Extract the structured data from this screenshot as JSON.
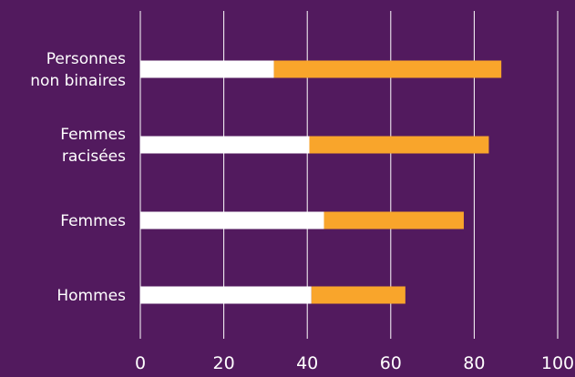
{
  "chart_data": {
    "type": "bar",
    "orientation": "horizontal",
    "stacked": true,
    "categories": [
      [
        "Personnes",
        "non binaires"
      ],
      [
        "Femmes",
        "racisées"
      ],
      [
        "Femmes"
      ],
      [
        "Hommes"
      ]
    ],
    "series": [
      {
        "values": [
          32,
          40.5,
          44,
          41
        ],
        "color": "#ffffff"
      },
      {
        "values": [
          54.5,
          43,
          33.5,
          22.5
        ],
        "color": "#f9a52b"
      }
    ],
    "x_ticks": [
      0,
      20,
      40,
      60,
      80,
      100
    ],
    "xlim": [
      0,
      100
    ],
    "grid": "vertical",
    "title": "",
    "xlabel": "",
    "ylabel": "",
    "colors": {
      "background": "#521a5e",
      "gridline": "#ffffff",
      "text": "#ffffff"
    }
  }
}
